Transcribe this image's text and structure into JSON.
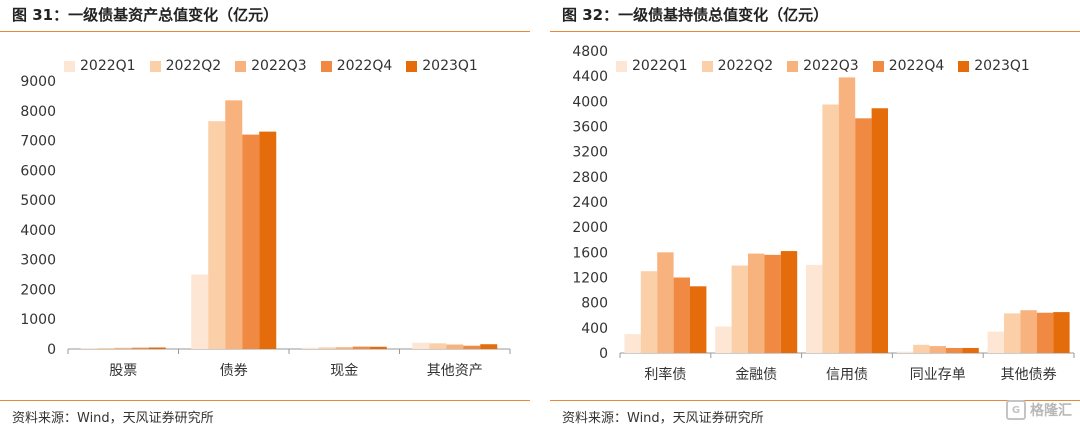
{
  "left": {
    "title": "图 31：一级债基资产总值变化（亿元）",
    "source": "资料来源：Wind，天风证券研究所"
  },
  "right": {
    "title": "图 32：一级债基持债总值变化（亿元）",
    "source": "资料来源：Wind，天风证券研究所"
  },
  "watermark": "格隆汇",
  "series_colors": [
    "#FDE6D4",
    "#FBCFA8",
    "#F7B27E",
    "#F08A42",
    "#E46C0A"
  ],
  "chart_data": [
    {
      "type": "bar",
      "title": "图 31：一级债基资产总值变化（亿元）",
      "categories": [
        "股票",
        "债券",
        "现金",
        "其他资产"
      ],
      "ylim": [
        0,
        9000
      ],
      "yticks": [
        0,
        1000,
        2000,
        3000,
        4000,
        5000,
        6000,
        7000,
        8000,
        9000
      ],
      "legend": "top-left",
      "grid": false,
      "series": [
        {
          "name": "2022Q1",
          "values": [
            30,
            2500,
            40,
            210
          ]
        },
        {
          "name": "2022Q2",
          "values": [
            35,
            7650,
            55,
            190
          ]
        },
        {
          "name": "2022Q3",
          "values": [
            40,
            8350,
            60,
            150
          ]
        },
        {
          "name": "2022Q4",
          "values": [
            45,
            7200,
            80,
            110
          ]
        },
        {
          "name": "2023Q1",
          "values": [
            50,
            7300,
            75,
            160
          ]
        }
      ]
    },
    {
      "type": "bar",
      "title": "图 32：一级债基持债总值变化（亿元）",
      "categories": [
        "利率债",
        "金融债",
        "信用债",
        "同业存单",
        "其他债券"
      ],
      "ylim": [
        0,
        4800
      ],
      "yticks": [
        0,
        400,
        800,
        1200,
        1600,
        2000,
        2400,
        2800,
        3200,
        3600,
        4000,
        4400,
        4800
      ],
      "legend": "top-left",
      "grid": false,
      "series": [
        {
          "name": "2022Q1",
          "values": [
            300,
            420,
            1400,
            20,
            340
          ]
        },
        {
          "name": "2022Q2",
          "values": [
            1300,
            1390,
            3950,
            130,
            630
          ]
        },
        {
          "name": "2022Q3",
          "values": [
            1600,
            1580,
            4380,
            110,
            680
          ]
        },
        {
          "name": "2022Q4",
          "values": [
            1200,
            1560,
            3730,
            80,
            640
          ]
        },
        {
          "name": "2023Q1",
          "values": [
            1060,
            1620,
            3890,
            80,
            650
          ]
        }
      ]
    }
  ]
}
